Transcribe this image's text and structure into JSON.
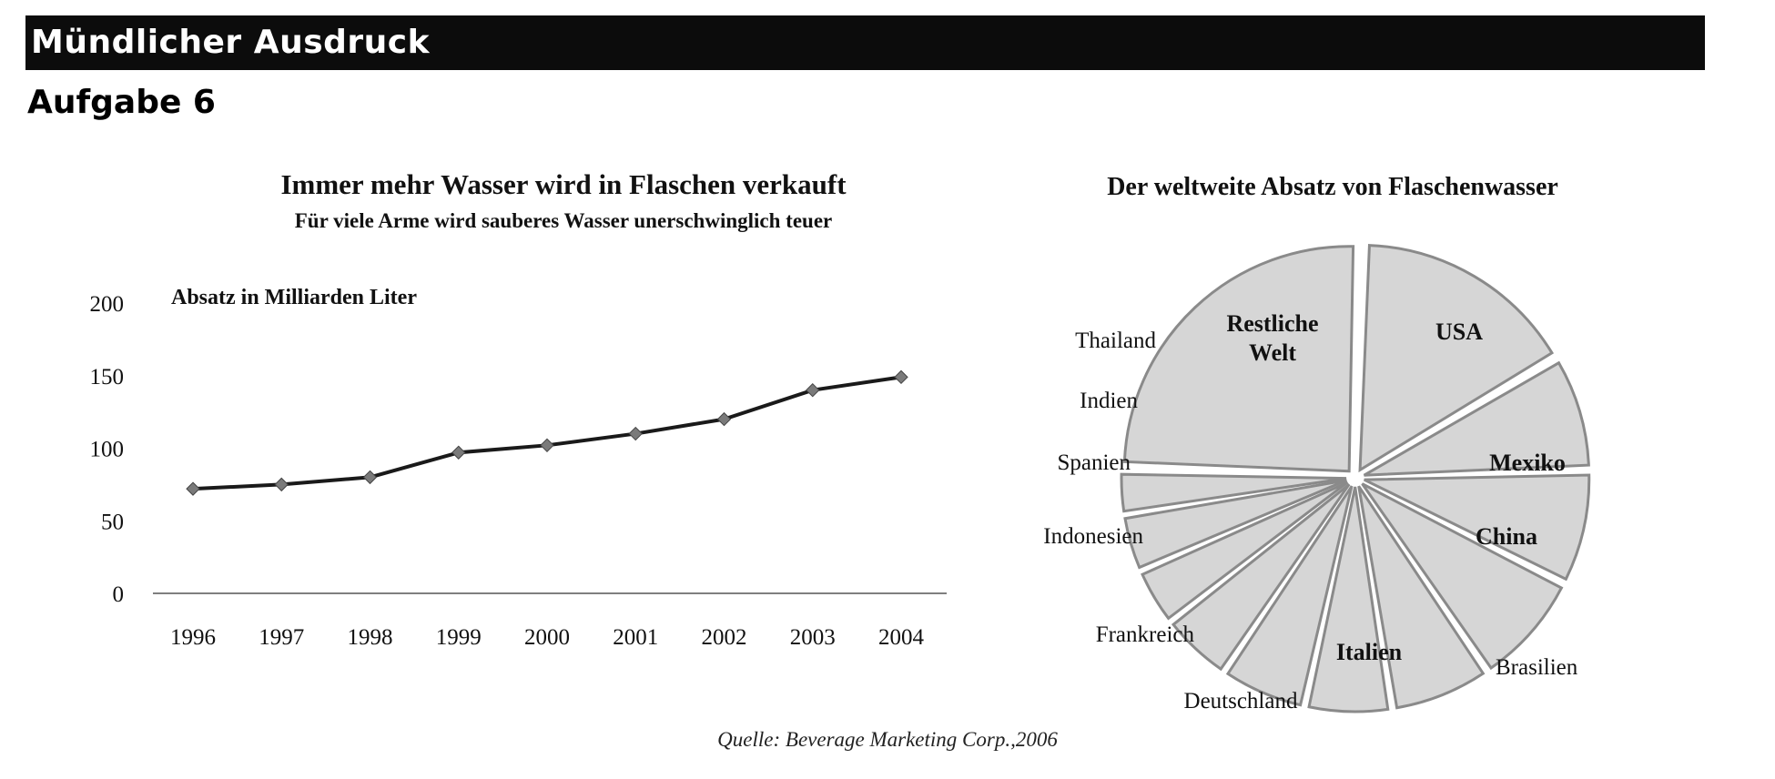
{
  "header": {
    "section_title": "Mündlicher Ausdruck",
    "task_title": "Aufgabe 6"
  },
  "line_chart": {
    "title": "Immer mehr Wasser wird in Flaschen verkauft",
    "subtitle": "Für viele Arme wird sauberes Wasser unerschwinglich teuer",
    "ylabel": "Absatz in Milliarden Liter"
  },
  "pie_chart": {
    "title": "Der weltweite Absatz von Flaschenwasser"
  },
  "source": "Quelle: Beverage Marketing Corp.,2006",
  "colors": {
    "line": "#1a1a1a",
    "marker": "#7a7a7a",
    "slice_fill": "#d6d6d6",
    "slice_stroke": "#8a8a8a"
  },
  "chart_data": [
    {
      "type": "line",
      "title": "Immer mehr Wasser wird in Flaschen verkauft",
      "subtitle": "Für viele Arme wird sauberes Wasser unerschwinglich teuer",
      "ylabel": "Absatz in Milliarden Liter",
      "xlabel": "",
      "x": [
        "1996",
        "1997",
        "1998",
        "1999",
        "2000",
        "2001",
        "2002",
        "2003",
        "2004"
      ],
      "values": [
        72,
        75,
        80,
        97,
        102,
        110,
        120,
        140,
        149
      ],
      "ylim": [
        0,
        200
      ],
      "yticks": [
        0,
        50,
        100,
        150,
        200
      ],
      "grid": false,
      "legend": "none"
    },
    {
      "type": "pie",
      "title": "Der weltweite Absatz von Flaschenwasser",
      "slices": [
        {
          "label": "USA",
          "value": 16,
          "label_inside": true
        },
        {
          "label": "Mexiko",
          "value": 8,
          "label_inside": true
        },
        {
          "label": "China",
          "value": 8,
          "label_inside": true
        },
        {
          "label": "Brasilien",
          "value": 8,
          "label_inside": false
        },
        {
          "label": "Italien",
          "value": 7,
          "label_inside": true
        },
        {
          "label": "Deutschland",
          "value": 6,
          "label_inside": false
        },
        {
          "label": "Frankreich",
          "value": 6,
          "label_inside": false
        },
        {
          "label": "Indonesien",
          "value": 5,
          "label_inside": false
        },
        {
          "label": "Spanien",
          "value": 4,
          "label_inside": false
        },
        {
          "label": "Indien",
          "value": 4,
          "label_inside": false
        },
        {
          "label": "Thailand",
          "value": 3,
          "label_inside": false
        },
        {
          "label": "Restliche Welt",
          "value": 25,
          "label_inside": true
        }
      ],
      "legend": "none"
    }
  ]
}
